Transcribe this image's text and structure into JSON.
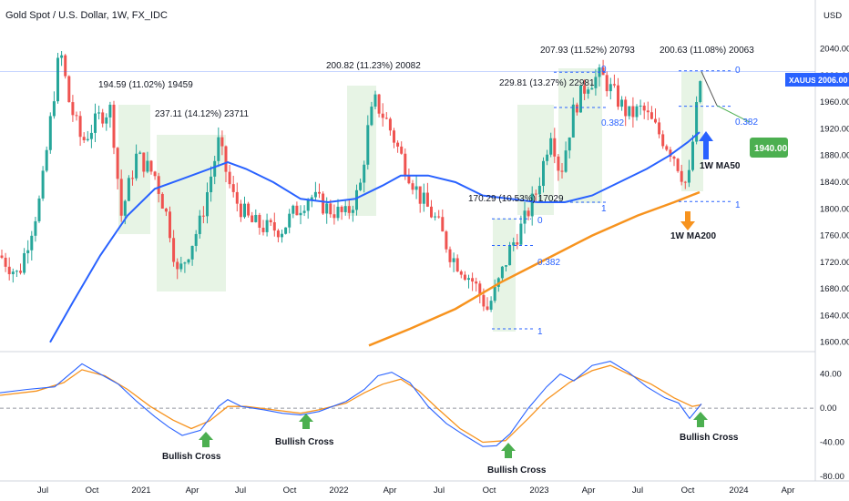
{
  "chart_data": {
    "type": "candlestick",
    "title": "Gold Spot / U.S. Dollar, 1W, FX_IDC",
    "currency": "USD",
    "price_axis": {
      "ticks": [
        2040,
        2000,
        1960,
        1920,
        1880,
        1840,
        1800,
        1760,
        1720,
        1680,
        1640,
        1600
      ],
      "range": [
        1590,
        2075
      ]
    },
    "oscillator_axis": {
      "ticks": [
        "40.00",
        "0.00",
        "-40.00",
        "-80.00"
      ],
      "range": [
        -80,
        62
      ]
    },
    "time_axis": [
      "Jul",
      "Oct",
      "2021",
      "Apr",
      "Jul",
      "Oct",
      "2022",
      "Apr",
      "Jul",
      "Oct",
      "2023",
      "Apr",
      "Jul",
      "Oct",
      "2024",
      "Apr"
    ],
    "last_price": {
      "symbol": "XAUUSD",
      "value": "2006.00"
    },
    "target_label": "1940.00",
    "colors": {
      "up": "#26a69a",
      "down": "#ef5350",
      "ma50": "#2962ff",
      "ma200": "#f7931e",
      "zone": "#e3f2e1",
      "target": "#4caf50"
    },
    "series": [
      {
        "name": "1W MA50",
        "color": "#2962ff"
      },
      {
        "name": "1W MA200",
        "color": "#f7931e"
      }
    ],
    "price_annotations": [
      "194.59 (11.02%) 19459",
      "237.11 (14.12%) 23711",
      "200.82 (11.23%) 20082",
      "170.29 (10.53%) 17029",
      "229.81 (13.27%) 22981",
      "207.93 (11.52%) 20793",
      "200.63 (11.08%) 20063"
    ],
    "fib_levels_1": [
      "0",
      "0.382",
      "1"
    ],
    "fib_levels_2": [
      "0",
      "0.382",
      "1"
    ],
    "fib_levels_3": [
      "0",
      "0.382",
      "1"
    ],
    "oscillator_annotations": [
      "Bullish Cross",
      "Bullish Cross",
      "Bullish Cross",
      "Bullish Cross"
    ]
  }
}
